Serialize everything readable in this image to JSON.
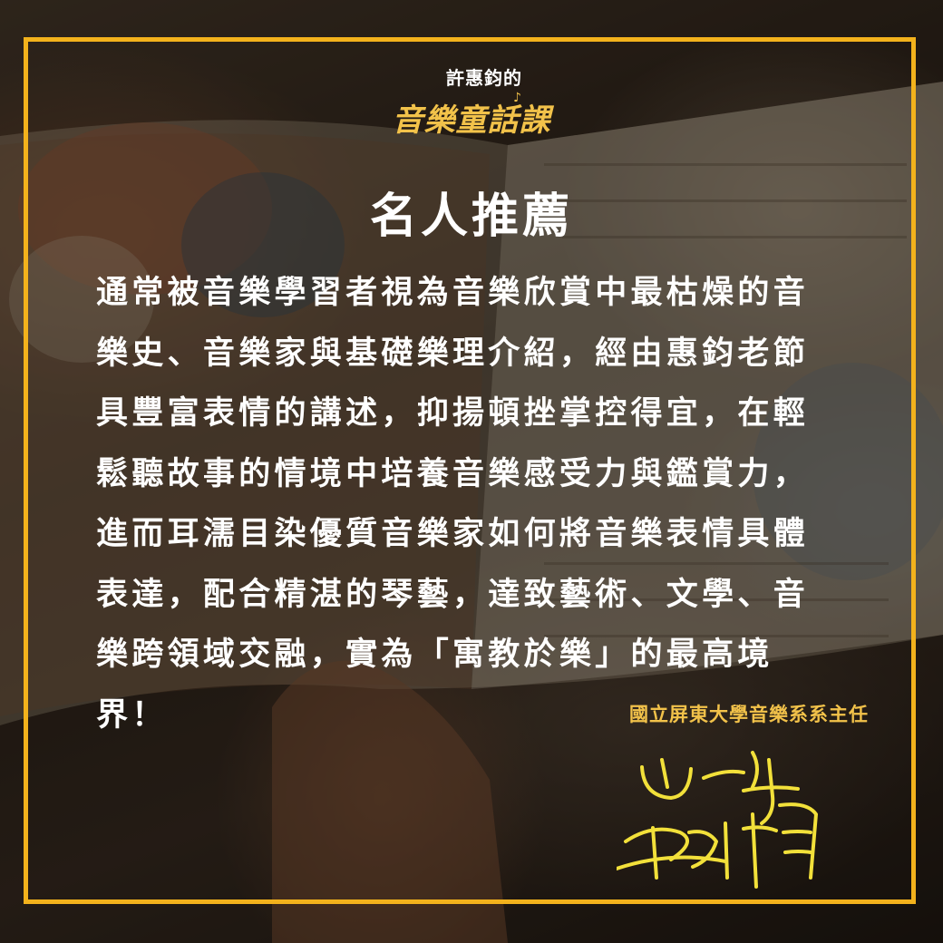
{
  "logo": {
    "author": "許惠鈞的",
    "title": "音樂童話課"
  },
  "heading": "名人推薦",
  "body_lines": [
    "通常被音樂學習者視為音樂欣賞中最枯燥的音",
    "樂史、音樂家與基礎樂理介紹，經由惠鈞老節",
    "具豐富表情的講述，抑揚頓挫掌控得宜，在輕",
    "鬆聽故事的情境中培養音樂感受力與鑑賞力，",
    "進而耳濡目染優質音樂家如何將音樂表情具體",
    "表達，配合精湛的琴藝，達致藝術、文學、音",
    "樂跨領域交融，實為「寓教於樂」的最高境",
    "界！"
  ],
  "attribution": "國立屏東大學音樂系系主任",
  "colors": {
    "frame": "#f3b21c",
    "accent_text": "#f2c24a",
    "body_text": "#ffffff"
  },
  "icons": {
    "logo_note": "music-note-icon",
    "signature": "handwritten-signature-icon"
  }
}
